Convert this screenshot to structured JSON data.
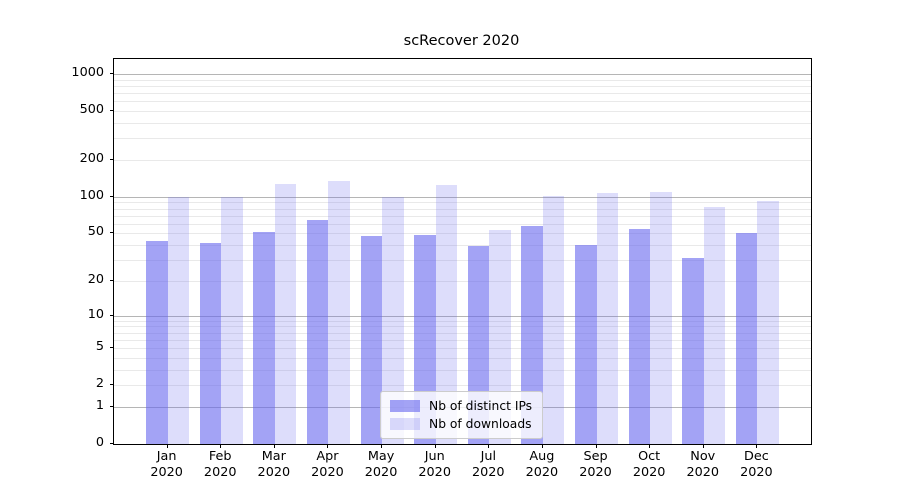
{
  "figure": {
    "background": "#ffffff"
  },
  "chart_data": {
    "type": "bar",
    "title": "scRecover 2020",
    "categories": [
      "Jan 2020",
      "Feb 2020",
      "Mar 2020",
      "Apr 2020",
      "May 2020",
      "Jun 2020",
      "Jul 2020",
      "Aug 2020",
      "Sep 2020",
      "Oct 2020",
      "Nov 2020",
      "Dec 2020"
    ],
    "series": [
      {
        "name": "Nb of distinct IPs",
        "color": "rgba(102,102,238,0.60)",
        "values": [
          43,
          42,
          51,
          65,
          48,
          49,
          39,
          58,
          40,
          54,
          31,
          50
        ]
      },
      {
        "name": "Nb of downloads",
        "color": "rgba(102,102,238,0.22)",
        "values": [
          100,
          100,
          127,
          134,
          100,
          126,
          53,
          101,
          107,
          110,
          82,
          93
        ]
      }
    ],
    "xlabel": "",
    "ylabel": "",
    "yscale": "log1p",
    "ylim": [
      0,
      1325
    ],
    "yticks": [
      0,
      1,
      2,
      5,
      10,
      20,
      50,
      100,
      200,
      500,
      1000
    ],
    "grid": {
      "orientation": "horizontal",
      "minor_color": "#e9e9e9",
      "major_color": "#b5b5b5"
    },
    "legend": {
      "position": "lower center",
      "background": "rgba(255,255,255,0.8)",
      "border_color": "#cccccc"
    }
  }
}
